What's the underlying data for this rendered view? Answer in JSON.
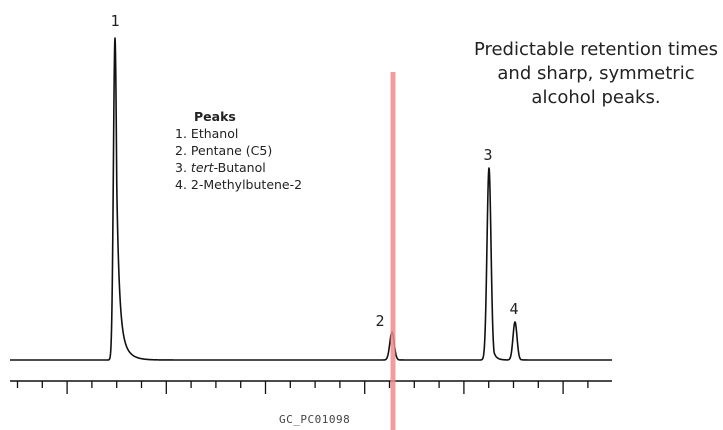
{
  "chart_data": {
    "type": "line",
    "title": "",
    "xlabel": "",
    "ylabel": "",
    "grid": false,
    "x_axis": {
      "minor_ticks": 24,
      "major_ticks": 6
    },
    "peaks": [
      {
        "label": "1",
        "x": 115,
        "height": 322,
        "width": 1.6,
        "tail": 7
      },
      {
        "label": "2",
        "x": 392,
        "height": 28,
        "width": 2.2,
        "tail": 2
      },
      {
        "label": "3",
        "x": 489,
        "height": 192,
        "width": 2.0,
        "tail": 3
      },
      {
        "label": "4",
        "x": 515,
        "height": 38,
        "width": 2.0,
        "tail": 2
      }
    ],
    "annotations": {
      "vertical_marker_x": 393,
      "marker_color": "#f08c8c"
    },
    "line_color": "#111111"
  },
  "legend": {
    "title": "Peaks",
    "items": [
      {
        "num": "1.",
        "name": "Ethanol",
        "name_pre": "",
        "name_italic": "",
        "name_post": ""
      },
      {
        "num": "2.",
        "name": "Pentane (C5)",
        "name_pre": "",
        "name_italic": "",
        "name_post": ""
      },
      {
        "num": "3.",
        "name": "",
        "name_pre": "",
        "name_italic": "tert",
        "name_post": "-Butanol"
      },
      {
        "num": "4.",
        "name": "2-Methylbutene-2",
        "name_pre": "",
        "name_italic": "",
        "name_post": ""
      }
    ]
  },
  "note": {
    "line1": "Predictable retention times",
    "line2": "and sharp, symmetric",
    "line3": "alcohol peaks."
  },
  "footer": {
    "code": "GC_PC01098"
  }
}
